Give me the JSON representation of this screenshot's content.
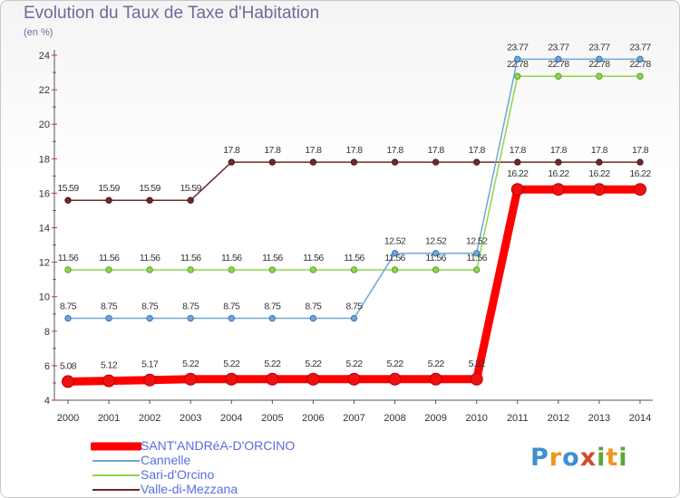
{
  "chart_data": {
    "type": "line",
    "title": "Evolution du Taux de Taxe d'Habitation",
    "ylabel": "(en %)",
    "xlabel": "",
    "ylim": [
      4,
      24
    ],
    "yticks": [
      "4",
      "6",
      "8",
      "10",
      "12",
      "14",
      "16",
      "18",
      "20",
      "22",
      "24"
    ],
    "categories": [
      "2000",
      "2001",
      "2002",
      "2003",
      "2004",
      "2005",
      "2006",
      "2007",
      "2008",
      "2009",
      "2010",
      "2011",
      "2012",
      "2013",
      "2014"
    ],
    "series": [
      {
        "name": "Valle-di-Mezzana",
        "color": "#6e2a2a",
        "values": [
          15.59,
          15.59,
          15.59,
          15.59,
          17.8,
          17.8,
          17.8,
          17.8,
          17.8,
          17.8,
          17.8,
          17.8,
          17.8,
          17.8,
          17.8
        ],
        "labels": [
          "15.59",
          "15.59",
          "15.59",
          "15.59",
          "17.8",
          "17.8",
          "17.8",
          "17.8",
          "17.8",
          "17.8",
          "17.8",
          "17.8",
          "17.8",
          "17.8",
          "17.8"
        ]
      },
      {
        "name": "Sari-d'Orcino",
        "color": "#8ed64a",
        "values": [
          11.56,
          11.56,
          11.56,
          11.56,
          11.56,
          11.56,
          11.56,
          11.56,
          11.56,
          11.56,
          11.56,
          22.78,
          22.78,
          22.78,
          22.78
        ],
        "labels": [
          "11.56",
          "11.56",
          "11.56",
          "11.56",
          "11.56",
          "11.56",
          "11.56",
          "11.56",
          "11.56",
          "11.56",
          "11.56",
          "22.78",
          "22.78",
          "22.78",
          "22.78"
        ]
      },
      {
        "name": "Cannelle",
        "color": "#6fa6d8",
        "values": [
          8.75,
          8.75,
          8.75,
          8.75,
          8.75,
          8.75,
          8.75,
          8.75,
          12.52,
          12.52,
          12.52,
          23.77,
          23.77,
          23.77,
          23.77
        ],
        "labels": [
          "8.75",
          "8.75",
          "8.75",
          "8.75",
          "8.75",
          "8.75",
          "8.75",
          "8.75",
          "12.52",
          "12.52",
          "12.52",
          "23.77",
          "23.77",
          "23.77",
          "23.77"
        ]
      },
      {
        "name": "SANT'ANDRéA-D'ORCINO",
        "color": "#ff0000",
        "values": [
          5.08,
          5.12,
          5.17,
          5.22,
          5.22,
          5.22,
          5.22,
          5.22,
          5.22,
          5.22,
          5.22,
          16.22,
          16.22,
          16.22,
          16.22
        ],
        "labels": [
          "5.08",
          "5.12",
          "5.17",
          "5.22",
          "5.22",
          "5.22",
          "5.22",
          "5.22",
          "5.22",
          "5.22",
          "5.22",
          "16.22",
          "16.22",
          "16.22",
          "16.22"
        ]
      }
    ]
  },
  "legend": {
    "items": [
      {
        "name": "SANT'ANDRéA-D'ORCINO",
        "color": "#ff0000"
      },
      {
        "name": "Cannelle",
        "color": "#6fa6d8"
      },
      {
        "name": "Sari-d'Orcino",
        "color": "#8ed64a"
      },
      {
        "name": "Valle-di-Mezzana",
        "color": "#6e2a2a"
      }
    ]
  },
  "logo": {
    "text": "Proxiti"
  }
}
